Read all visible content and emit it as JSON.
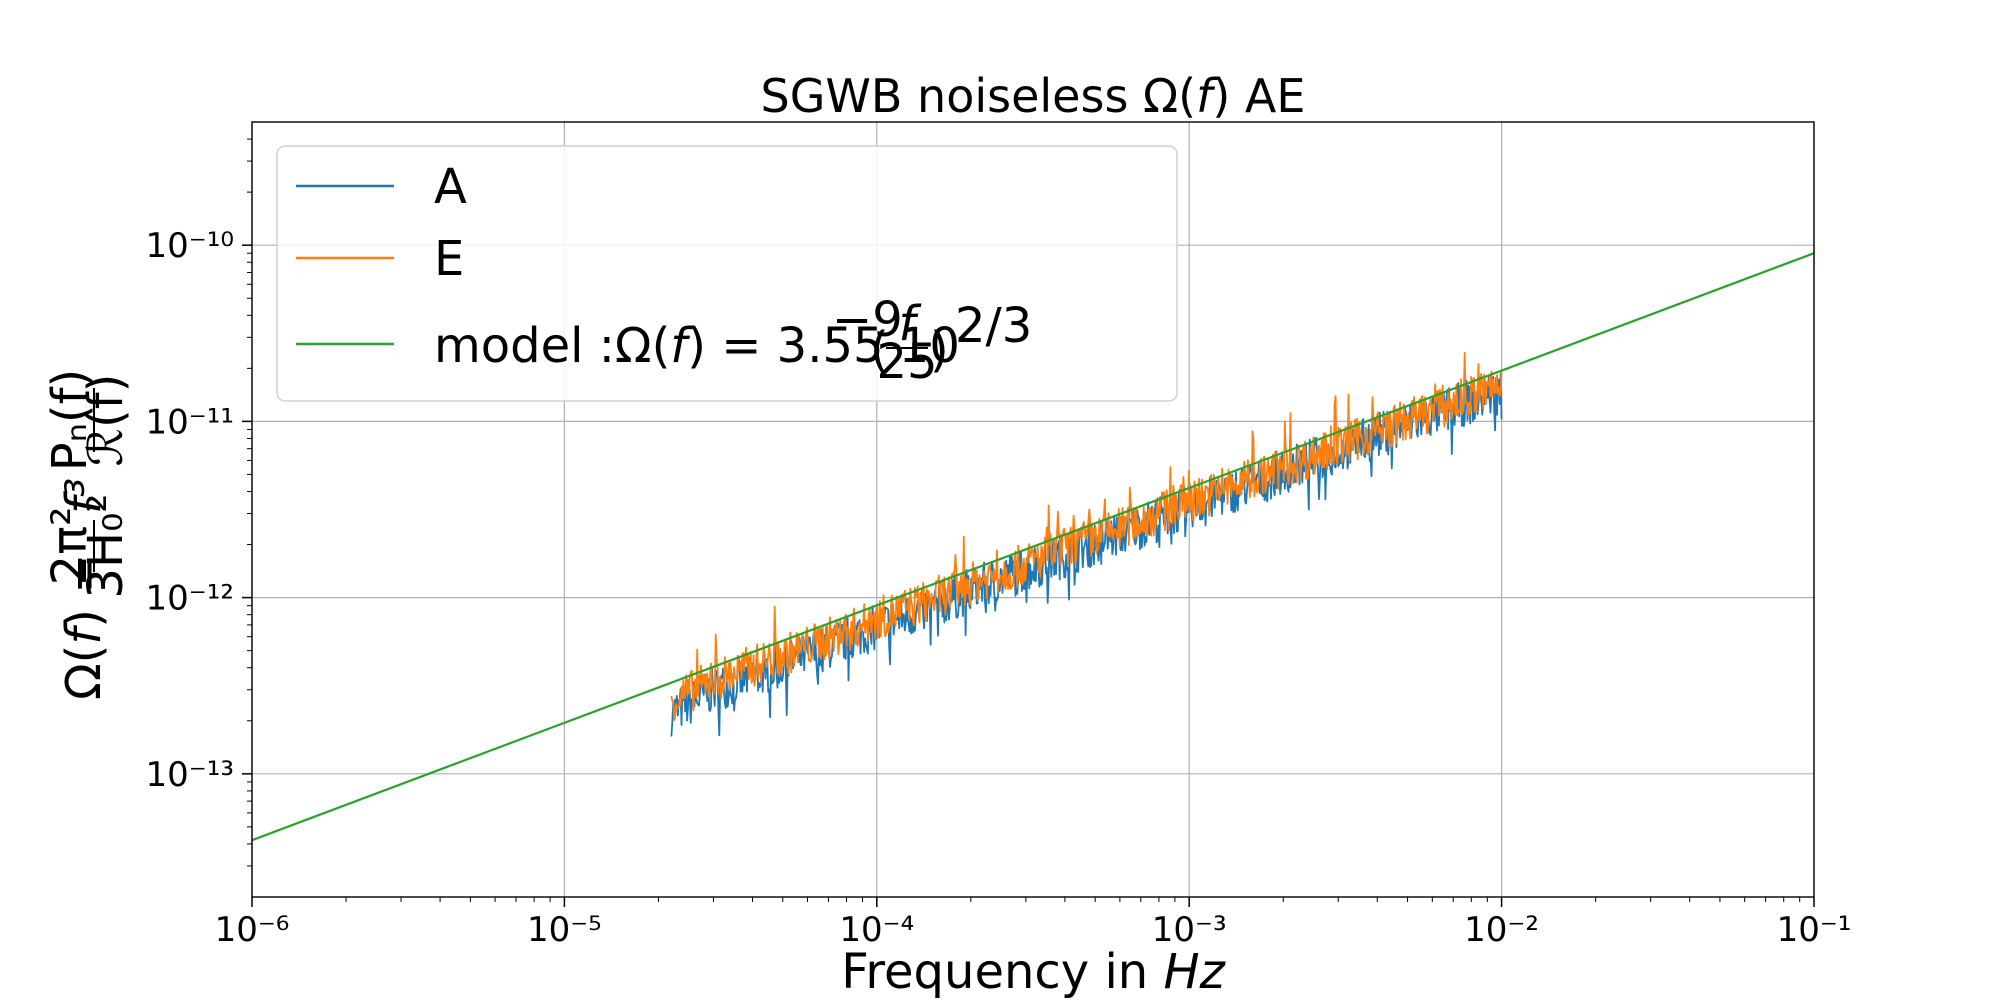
{
  "chart_data": {
    "type": "line",
    "title": "SGWB noiseless Ω(f) AE",
    "xlabel": "Frequency in Hz",
    "ylabel": "Ω(f) = (2π²/3H₀²) f³ Pₙ(f)/ℛ(f)",
    "xscale": "log",
    "yscale": "log",
    "xlim": [
      1e-06,
      0.1
    ],
    "ylim": [
      2e-14,
      5e-10
    ],
    "grid": true,
    "legend_position": "top-left",
    "x_ticks": [
      "10⁻⁶",
      "10⁻⁵",
      "10⁻⁴",
      "10⁻³",
      "10⁻²",
      "10⁻¹"
    ],
    "y_ticks": [
      "10⁻¹³",
      "10⁻¹²",
      "10⁻¹¹",
      "10⁻¹⁰"
    ],
    "series": [
      {
        "name": "A",
        "color": "#1f77b4",
        "x": [
          2.2e-05,
          3e-05,
          4e-05,
          5e-05,
          6e-05,
          8e-05,
          0.0001,
          0.00015,
          0.0002,
          0.0003,
          0.0004,
          0.0005,
          0.0007,
          0.001,
          0.0015,
          0.002,
          0.003,
          0.004,
          0.005,
          0.007,
          0.01
        ],
        "y": [
          2.2e-13,
          3e-13,
          3.6e-13,
          4.1e-13,
          4.7e-13,
          5.8e-13,
          6.8e-13,
          8.8e-13,
          1.1e-12,
          1.45e-12,
          1.75e-12,
          2.05e-12,
          2.55e-12,
          3.3e-12,
          4.3e-12,
          5.2e-12,
          6.8e-12,
          8.3e-12,
          9.6e-12,
          1.2e-11,
          1.5e-11
        ]
      },
      {
        "name": "E",
        "color": "#ff7f0e",
        "x": [
          2.2e-05,
          3e-05,
          4e-05,
          5e-05,
          6e-05,
          8e-05,
          0.0001,
          0.00015,
          0.0002,
          0.0003,
          0.0004,
          0.0005,
          0.0007,
          0.001,
          0.0015,
          0.002,
          0.003,
          0.004,
          0.005,
          0.007,
          0.01
        ],
        "y": [
          2.6e-13,
          3.4e-13,
          4.1e-13,
          4.7e-13,
          5.3e-13,
          6.4e-13,
          7.6e-13,
          9.8e-13,
          1.2e-12,
          1.55e-12,
          1.9e-12,
          2.2e-12,
          2.75e-12,
          3.5e-12,
          4.5e-12,
          5.5e-12,
          7.2e-12,
          8.8e-12,
          1.02e-11,
          1.28e-11,
          1.6e-11
        ]
      },
      {
        "name": "model :Ω(f) = 3.55 10⁻⁹(f/25)^(2/3)",
        "color": "#2ca02c",
        "x": [
          1e-06,
          0.1
        ],
        "y": [
          4.2e-14,
          9e-11
        ]
      }
    ]
  },
  "legend": {
    "label_a": "A",
    "label_e": "E",
    "label_model_prefix": "model :Ω(",
    "label_model_f": "f",
    "label_model_mid": ") = 3.55 10",
    "label_model_exp": "−9",
    "label_model_paren_open": "(",
    "label_model_frac_num": "f",
    "label_model_frac_den": "25",
    "label_model_paren_close": ")",
    "label_model_power": "2/3"
  },
  "ylabel_parts": {
    "omega": "Ω(",
    "f1": "f",
    "close_eq": ") =",
    "frac1_num": "2π²",
    "frac1_den": "3H₀²",
    "f3": "f³",
    "frac2_num": "Pₙ(f)",
    "frac2_den": "ℛ(f)"
  },
  "xlabel_parts": {
    "text": "Frequency in ",
    "unit": "Hz"
  },
  "title_parts": {
    "pre": "SGWB noiseless Ω(",
    "f": "f",
    "post": ") AE"
  }
}
